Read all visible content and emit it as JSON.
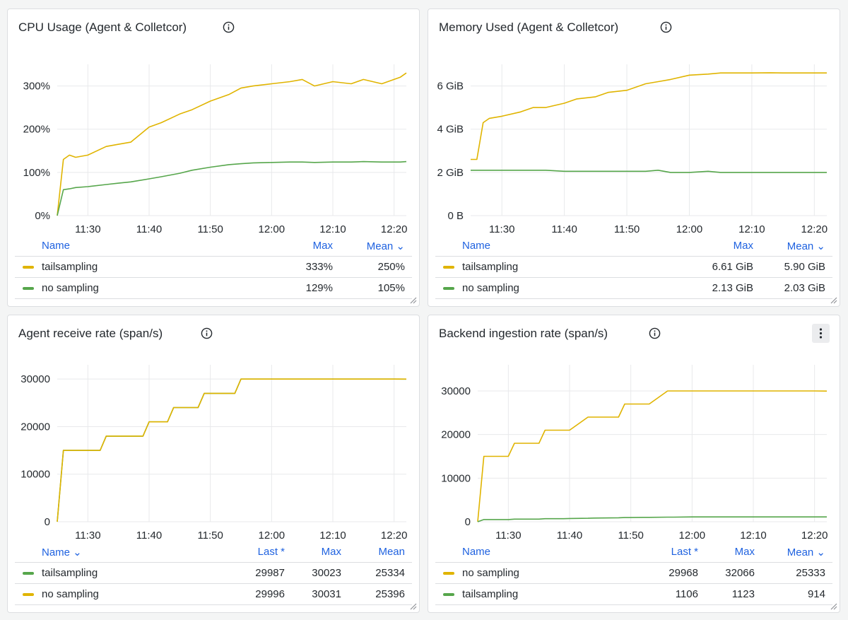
{
  "colors": {
    "yellow": "#e0b400",
    "green": "#56a64b",
    "link": "#1f62e0"
  },
  "panels": [
    {
      "title": "CPU Usage (Agent & Colletcor)",
      "legend": {
        "headers": [
          "Name",
          "Max",
          "Mean ⌄"
        ],
        "rows": [
          {
            "name": "tailsampling",
            "color": "yellow",
            "values": [
              "333%",
              "250%"
            ]
          },
          {
            "name": "no sampling",
            "color": "green",
            "values": [
              "129%",
              "105%"
            ]
          }
        ]
      }
    },
    {
      "title": "Memory Used (Agent & Colletcor)",
      "legend": {
        "headers": [
          "Name",
          "Max",
          "Mean ⌄"
        ],
        "rows": [
          {
            "name": "tailsampling",
            "color": "yellow",
            "values": [
              "6.61 GiB",
              "5.90 GiB"
            ]
          },
          {
            "name": "no sampling",
            "color": "green",
            "values": [
              "2.13 GiB",
              "2.03 GiB"
            ]
          }
        ]
      }
    },
    {
      "title": "Agent receive rate (span/s)",
      "legend": {
        "headers": [
          "Name ⌄",
          "Last *",
          "Max",
          "Mean"
        ],
        "rows": [
          {
            "name": "tailsampling",
            "color": "green",
            "values": [
              "29987",
              "30023",
              "25334"
            ]
          },
          {
            "name": "no sampling",
            "color": "yellow",
            "values": [
              "29996",
              "30031",
              "25396"
            ]
          }
        ]
      }
    },
    {
      "title": "Backend ingestion rate (span/s)",
      "legend": {
        "headers": [
          "Name",
          "Last *",
          "Max",
          "Mean ⌄"
        ],
        "rows": [
          {
            "name": "no sampling",
            "color": "yellow",
            "values": [
              "29968",
              "32066",
              "25333"
            ]
          },
          {
            "name": "tailsampling",
            "color": "green",
            "values": [
              "1106",
              "1123",
              "914"
            ]
          }
        ]
      }
    }
  ],
  "chart_data": [
    {
      "type": "line",
      "title": "CPU Usage (Agent & Colletcor)",
      "x": [
        "11:25",
        "11:26",
        "11:27",
        "11:28",
        "11:30",
        "11:33",
        "11:35",
        "11:37",
        "11:40",
        "11:42",
        "11:45",
        "11:47",
        "11:50",
        "11:53",
        "11:55",
        "11:57",
        "12:00",
        "12:03",
        "12:05",
        "12:07",
        "12:10",
        "12:13",
        "12:15",
        "12:18",
        "12:21",
        "12:22"
      ],
      "xticks": [
        "11:30",
        "11:40",
        "11:50",
        "12:00",
        "12:10",
        "12:20"
      ],
      "yticks": [
        "0%",
        "100%",
        "200%",
        "300%"
      ],
      "ylim": [
        0,
        350
      ],
      "series": [
        {
          "name": "tailsampling",
          "color": "yellow",
          "values": [
            0,
            130,
            140,
            135,
            140,
            160,
            165,
            170,
            205,
            215,
            235,
            245,
            265,
            280,
            295,
            300,
            305,
            310,
            315,
            300,
            310,
            305,
            315,
            305,
            320,
            330
          ]
        },
        {
          "name": "no sampling",
          "color": "green",
          "values": [
            0,
            60,
            62,
            65,
            67,
            72,
            75,
            78,
            85,
            90,
            98,
            105,
            112,
            118,
            120,
            122,
            123,
            124,
            124,
            123,
            124,
            124,
            125,
            124,
            124,
            125
          ]
        }
      ]
    },
    {
      "type": "line",
      "title": "Memory Used (Agent & Colletcor)",
      "x": [
        "11:25",
        "11:26",
        "11:27",
        "11:28",
        "11:30",
        "11:33",
        "11:35",
        "11:37",
        "11:40",
        "11:42",
        "11:45",
        "11:47",
        "11:50",
        "11:53",
        "11:55",
        "11:57",
        "12:00",
        "12:03",
        "12:05",
        "12:07",
        "12:10",
        "12:13",
        "12:15",
        "12:18",
        "12:21",
        "12:22"
      ],
      "xticks": [
        "11:30",
        "11:40",
        "11:50",
        "12:00",
        "12:10",
        "12:20"
      ],
      "yticks": [
        "0 B",
        "2 GiB",
        "4 GiB",
        "6 GiB"
      ],
      "ylim": [
        0,
        7
      ],
      "series": [
        {
          "name": "tailsampling",
          "color": "yellow",
          "values": [
            2.6,
            2.6,
            4.3,
            4.5,
            4.6,
            4.8,
            5.0,
            5.0,
            5.2,
            5.4,
            5.5,
            5.7,
            5.8,
            6.1,
            6.2,
            6.3,
            6.5,
            6.55,
            6.6,
            6.6,
            6.6,
            6.61,
            6.6,
            6.6,
            6.6,
            6.6
          ]
        },
        {
          "name": "no sampling",
          "color": "green",
          "values": [
            2.1,
            2.1,
            2.1,
            2.1,
            2.1,
            2.1,
            2.1,
            2.1,
            2.05,
            2.05,
            2.05,
            2.05,
            2.05,
            2.05,
            2.1,
            2.0,
            2.0,
            2.05,
            2.0,
            2.0,
            2.0,
            2.0,
            2.0,
            2.0,
            2.0,
            2.0
          ]
        }
      ]
    },
    {
      "type": "line",
      "title": "Agent receive rate (span/s)",
      "x": [
        "11:25",
        "11:26",
        "11:27",
        "11:28",
        "11:29",
        "11:32",
        "11:33",
        "11:36",
        "11:37",
        "11:39",
        "11:40",
        "11:43",
        "11:44",
        "11:48",
        "11:49",
        "11:54",
        "11:55",
        "12:00",
        "12:10",
        "12:20",
        "12:22"
      ],
      "xticks": [
        "11:30",
        "11:40",
        "11:50",
        "12:00",
        "12:10",
        "12:20"
      ],
      "yticks": [
        "0",
        "10000",
        "20000",
        "30000"
      ],
      "ylim": [
        0,
        33000
      ],
      "series": [
        {
          "name": "tailsampling",
          "color": "green",
          "values": [
            0,
            15000,
            15000,
            15000,
            15000,
            15000,
            18000,
            18000,
            18000,
            18000,
            21000,
            21000,
            24000,
            24000,
            27000,
            27000,
            30000,
            30000,
            30000,
            30000,
            29987
          ]
        },
        {
          "name": "no sampling",
          "color": "yellow",
          "values": [
            0,
            15000,
            15000,
            15000,
            15000,
            15000,
            18000,
            18000,
            18000,
            18000,
            21000,
            21000,
            24000,
            24000,
            27000,
            27000,
            30000,
            30000,
            30000,
            30000,
            29996
          ]
        }
      ]
    },
    {
      "type": "line",
      "title": "Backend ingestion rate (span/s)",
      "x": [
        "11:25",
        "11:26",
        "11:30",
        "11:31",
        "11:35",
        "11:36",
        "11:39",
        "11:40",
        "11:43",
        "11:44",
        "11:48",
        "11:49",
        "11:52",
        "11:53",
        "11:56",
        "11:57",
        "12:00",
        "12:03",
        "12:05",
        "12:10",
        "12:15",
        "12:20",
        "12:22"
      ],
      "xticks": [
        "11:30",
        "11:40",
        "11:50",
        "12:00",
        "12:10",
        "12:20"
      ],
      "yticks": [
        "0",
        "10000",
        "20000",
        "30000"
      ],
      "ylim": [
        0,
        36000
      ],
      "series": [
        {
          "name": "no sampling",
          "color": "yellow",
          "values": [
            0,
            15000,
            15000,
            18000,
            18000,
            21000,
            21000,
            21000,
            24000,
            24000,
            24000,
            27000,
            27000,
            27000,
            30000,
            30000,
            30000,
            30000,
            30000,
            30000,
            30000,
            30000,
            29968
          ]
        },
        {
          "name": "tailsampling",
          "color": "green",
          "values": [
            0,
            500,
            500,
            600,
            600,
            700,
            700,
            750,
            800,
            850,
            900,
            950,
            1000,
            1000,
            1050,
            1050,
            1100,
            1100,
            1100,
            1100,
            1100,
            1100,
            1106
          ]
        }
      ]
    }
  ]
}
